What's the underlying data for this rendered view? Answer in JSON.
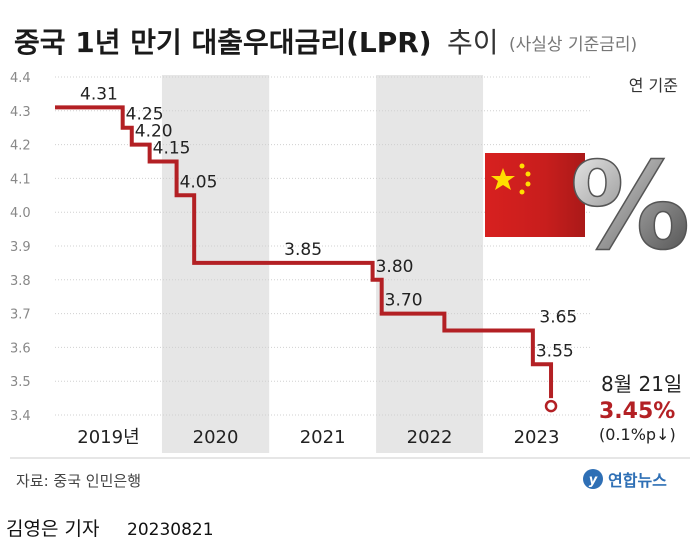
{
  "header": {
    "title": "중국 1년 만기 대출우대금리(LPR)",
    "title_suffix": "추이",
    "subtitle": "(사실상 기준금리)"
  },
  "chart_data": {
    "type": "line",
    "step": true,
    "unit_note": "연 기준",
    "ylim": [
      3.4,
      4.4
    ],
    "yticks": [
      "4.4",
      "4.3",
      "4.2",
      "4.1",
      "4.0",
      "3.9",
      "3.8",
      "3.7",
      "3.6",
      "3.5",
      "3.4"
    ],
    "xlim": [
      "2019-01-01",
      "2024-01-01"
    ],
    "year_bands": [
      {
        "label": "2019년",
        "start": "2019-01-01",
        "end": "2020-01-01"
      },
      {
        "label": "2020",
        "start": "2020-01-01",
        "end": "2021-01-01"
      },
      {
        "label": "2021",
        "start": "2021-01-01",
        "end": "2022-01-01"
      },
      {
        "label": "2022",
        "start": "2022-01-01",
        "end": "2023-01-01"
      },
      {
        "label": "2023",
        "start": "2023-01-01",
        "end": "2024-01-01"
      }
    ],
    "series": [
      {
        "points": [
          {
            "x": "2019-01-01",
            "y": 4.31,
            "label": "4.31"
          },
          {
            "x": "2019-08-20",
            "y": 4.25,
            "label": "4.25"
          },
          {
            "x": "2019-09-20",
            "y": 4.2,
            "label": "4.20"
          },
          {
            "x": "2019-11-20",
            "y": 4.15,
            "label": "4.15"
          },
          {
            "x": "2020-02-20",
            "y": 4.05,
            "label": "4.05"
          },
          {
            "x": "2020-04-20",
            "y": 3.85,
            "label": "3.85"
          },
          {
            "x": "2021-12-20",
            "y": 3.8,
            "label": "3.80"
          },
          {
            "x": "2022-01-20",
            "y": 3.7,
            "label": "3.70"
          },
          {
            "x": "2022-08-22",
            "y": 3.65,
            "label": "3.65"
          },
          {
            "x": "2023-06-20",
            "y": 3.55,
            "label": "3.55"
          },
          {
            "x": "2023-08-21",
            "y": 3.45,
            "label": ""
          }
        ],
        "color": "#b32024"
      }
    ],
    "annotation": {
      "date_text": "8월 21일",
      "value_text": "3.45%",
      "change_text": "(0.1%p↓)",
      "value_color": "#b32024"
    }
  },
  "footer": {
    "source": "자료: 중국 인민은행",
    "agency": "연합뉴스",
    "byline": "김영은 기자",
    "date": "20230821"
  },
  "decor": {
    "flag_icon": "china-flag-icon",
    "percent_symbol": "%"
  }
}
